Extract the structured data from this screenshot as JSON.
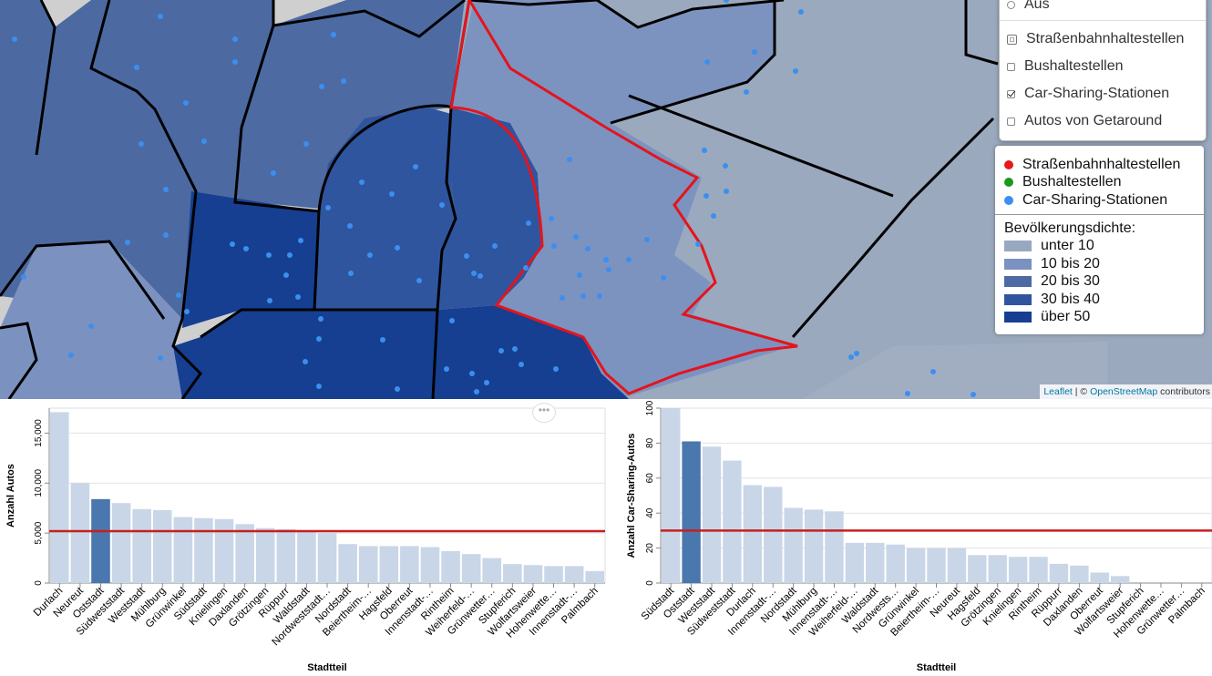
{
  "map": {
    "layer_control": {
      "items": [
        {
          "label": "Aus",
          "type": "radio",
          "checked": false
        },
        {
          "label": "Straßenbahnhaltestellen",
          "type": "checkbox",
          "checked": false,
          "partial": true
        },
        {
          "label": "Bushaltestellen",
          "type": "checkbox",
          "checked": false
        },
        {
          "label": "Car-Sharing-Stationen",
          "type": "checkbox",
          "checked": true
        },
        {
          "label": "Autos von Getaround",
          "type": "checkbox",
          "checked": false
        }
      ]
    },
    "legend": {
      "points": [
        {
          "label": "Straßenbahnhaltestellen",
          "color": "#e41a1c"
        },
        {
          "label": "Bushaltestellen",
          "color": "#1a9a1a"
        },
        {
          "label": "Car-Sharing-Stationen",
          "color": "#3b8ff0"
        }
      ],
      "density_title": "Bevölkerungsdichte:",
      "density": [
        {
          "label": "unter 10",
          "color": "#98a8bf"
        },
        {
          "label": "10 bis 20",
          "color": "#7b92c0"
        },
        {
          "label": "20 bis 30",
          "color": "#4d6aa3"
        },
        {
          "label": "30 bis 40",
          "color": "#2f559e"
        },
        {
          "label": "über 50",
          "color": "#163f91"
        }
      ]
    },
    "attribution": {
      "leaflet": "Leaflet",
      "sep": " | © ",
      "osm": "OpenStreetMap",
      "contrib": " contributors"
    }
  },
  "chart_data": [
    {
      "type": "bar",
      "title": "",
      "xlabel": "Stadtteil",
      "ylabel": "Anzahl Autos",
      "ylim": [
        0,
        17500
      ],
      "yticks": [
        "0",
        "5,000",
        "10,000",
        "15,000"
      ],
      "reference_line": 5200,
      "highlight": "Oststadt",
      "categories": [
        "Durlach",
        "Neureut",
        "Oststadt",
        "Südweststadt",
        "Weststadt",
        "Mühlburg",
        "Grünwinkel",
        "Südstadt",
        "Knielingen",
        "Daxlanden",
        "Grötzingen",
        "Rüppurr",
        "Waldstadt",
        "Nordweststadt",
        "Nordstadt",
        "Beiertheim-...",
        "Hagsfeld",
        "Oberreut",
        "Innenstadt-...",
        "Rintheim",
        "Weiherfeld-...",
        "Grünwetter...",
        "Stupferich",
        "Wolfartsweier",
        "Hohenwette...",
        "Innenstadt-...",
        "Palmbach"
      ],
      "tick_labels": [
        "Durlach",
        "Neureut",
        "Oststadt",
        "Südweststadt",
        "Weststadt",
        "Mühlburg",
        "Grünwinkel",
        "Südstadt",
        "Knielingen",
        "Daxlanden",
        "Grötzingen",
        "Rüppurr",
        "Waldstadt",
        "Nordweststadt…",
        "Nordstadt",
        "Beiertheim-…",
        "Hagsfeld",
        "Oberreut",
        "Innenstadt-…",
        "Rintheim",
        "Weiherfeld-…",
        "Grünwetter…",
        "Stupferich",
        "Wolfartsweier",
        "Hohenwette…",
        "Innenstadt-…",
        "Palmbach"
      ],
      "values": [
        17100,
        10000,
        8400,
        8000,
        7400,
        7300,
        6600,
        6500,
        6400,
        5900,
        5500,
        5400,
        5100,
        5000,
        3900,
        3700,
        3700,
        3700,
        3600,
        3200,
        2900,
        2500,
        1900,
        1800,
        1700,
        1700,
        1200
      ]
    },
    {
      "type": "bar",
      "title": "",
      "xlabel": "Stadtteil",
      "ylabel": "Anzahl Car-Sharing-Autos",
      "ylim": [
        0,
        100
      ],
      "yticks": [
        "0",
        "20",
        "40",
        "60",
        "80",
        "100"
      ],
      "reference_line": 30,
      "highlight": "Oststadt",
      "categories": [
        "Südstadt",
        "Oststadt",
        "Weststadt",
        "Südweststadt",
        "Durlach",
        "Innenstadt-...",
        "Nordstadt",
        "Mühlburg",
        "Innenstadt-...",
        "Weiherfeld-...",
        "Waldstadt",
        "Nordweststadt",
        "Grünwinkel",
        "Beiertheim-...",
        "Neureut",
        "Hagsfeld",
        "Grötzingen",
        "Knielingen",
        "Rintheim",
        "Rüppurr",
        "Daxlanden",
        "Oberreut",
        "Wolfartsweier",
        "Stupferich",
        "Hohenwette...",
        "Grünwetter...",
        "Palmbach"
      ],
      "tick_labels": [
        "Südstadt",
        "Oststadt",
        "Weststadt",
        "Südweststadt",
        "Durlach",
        "Innenstadt-…",
        "Nordstadt",
        "Mühlburg",
        "Innenstadt-…",
        "Weiherfeld-…",
        "Waldstadt",
        "Nordwests…",
        "Grünwinkel",
        "Beiertheim-…",
        "Neureut",
        "Hagsfeld",
        "Grötzingen",
        "Knielingen",
        "Rintheim",
        "Rüppurr",
        "Daxlanden",
        "Oberreut",
        "Wolfartsweier",
        "Stupferich",
        "Hohenwette…",
        "Grünwetter…",
        "Palmbach"
      ],
      "values": [
        100,
        81,
        78,
        70,
        56,
        55,
        43,
        42,
        41,
        23,
        23,
        22,
        20,
        20,
        20,
        16,
        16,
        15,
        15,
        11,
        10,
        6,
        4,
        0,
        0,
        0,
        0
      ]
    }
  ]
}
